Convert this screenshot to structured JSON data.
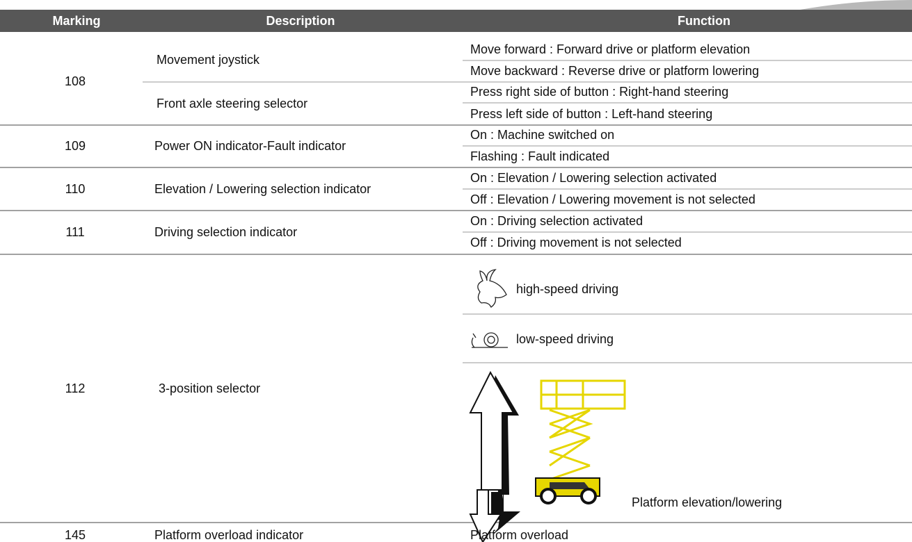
{
  "table": {
    "header": [
      "Marking",
      "Description",
      "Function"
    ],
    "rows": [
      {
        "marking": "108",
        "items": [
          {
            "description": "Movement joystick",
            "functions": [
              "Move forward : Forward drive or platform elevation",
              "Move backward : Reverse drive or platform lowering"
            ]
          },
          {
            "description": "Front axle steering selector",
            "functions": [
              "Press right side of button : Right-hand steering",
              "Press left side of button : Left-hand steering"
            ]
          }
        ]
      },
      {
        "marking": "109",
        "items": [
          {
            "description": "Power ON indicator-Fault indicator",
            "functions": [
              "On : Machine switched on",
              "Flashing : Fault indicated"
            ]
          }
        ]
      },
      {
        "marking": "110",
        "items": [
          {
            "description": "Elevation / Lowering selection indicator",
            "functions": [
              "On : Elevation / Lowering selection activated",
              "Off : Elevation / Lowering movement is not selected"
            ]
          }
        ]
      },
      {
        "marking": "111",
        "items": [
          {
            "description": "Driving selection indicator",
            "functions": [
              "On : Driving selection activated",
              "Off : Driving movement is not selected"
            ]
          }
        ]
      },
      {
        "marking": "112",
        "items": [
          {
            "description": "3-position selector",
            "functions": [
              "high-speed driving",
              "low-speed driving",
              "Platform elevation/lowering"
            ]
          }
        ]
      },
      {
        "marking": "145",
        "items": [
          {
            "description": "Platform overload indicator",
            "functions": [
              "Platform overload"
            ]
          }
        ]
      }
    ]
  }
}
